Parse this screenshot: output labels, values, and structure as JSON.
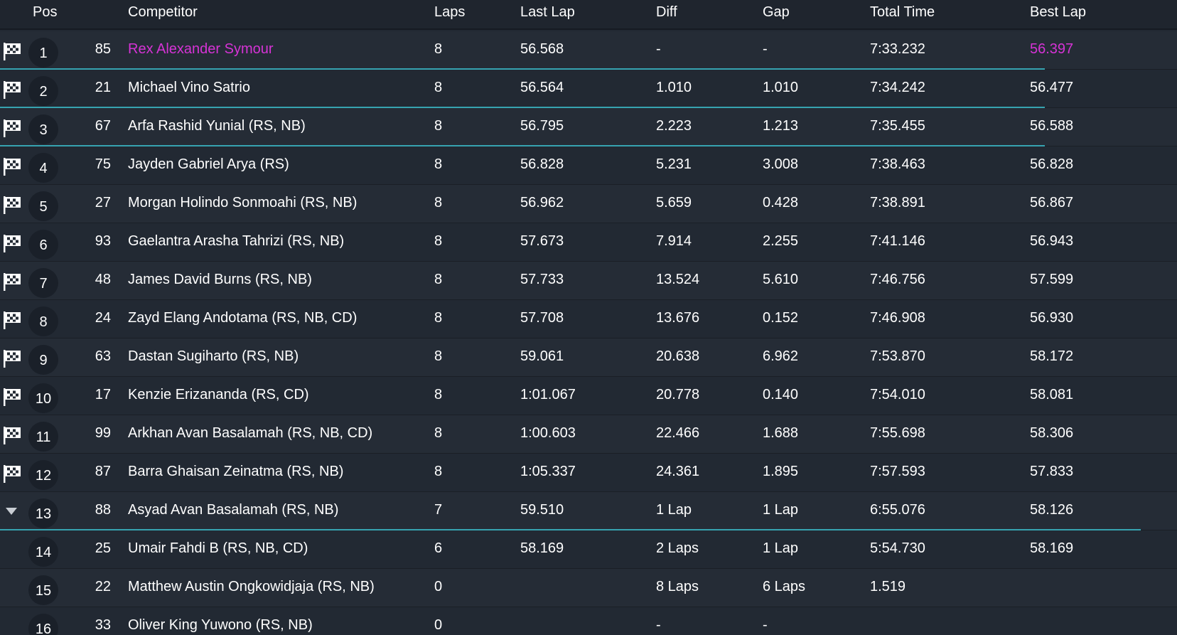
{
  "header": {
    "pos": "Pos",
    "competitor": "Competitor",
    "laps": "Laps",
    "last_lap": "Last Lap",
    "diff": "Diff",
    "gap": "Gap",
    "total_time": "Total Time",
    "best_lap": "Best Lap"
  },
  "colors": {
    "background": "#222933",
    "highlight": "#d633d6",
    "separator": "#36a3b0"
  },
  "rows": [
    {
      "status": "finished",
      "pos": "1",
      "num": "85",
      "competitor": "Rex Alexander Symour",
      "laps": "8",
      "last_lap": "56.568",
      "diff": "-",
      "gap": "-",
      "total_time": "7:33.232",
      "best_lap": "56.397",
      "highlight": true
    },
    {
      "status": "finished",
      "pos": "2",
      "num": "21",
      "competitor": "Michael Vino Satrio",
      "laps": "8",
      "last_lap": "56.564",
      "diff": "1.010",
      "gap": "1.010",
      "total_time": "7:34.242",
      "best_lap": "56.477"
    },
    {
      "status": "finished",
      "pos": "3",
      "num": "67",
      "competitor": "Arfa Rashid Yunial (RS, NB)",
      "laps": "8",
      "last_lap": "56.795",
      "diff": "2.223",
      "gap": "1.213",
      "total_time": "7:35.455",
      "best_lap": "56.588"
    },
    {
      "status": "finished",
      "pos": "4",
      "num": "75",
      "competitor": "Jayden Gabriel Arya (RS)",
      "laps": "8",
      "last_lap": "56.828",
      "diff": "5.231",
      "gap": "3.008",
      "total_time": "7:38.463",
      "best_lap": "56.828"
    },
    {
      "status": "finished",
      "pos": "5",
      "num": "27",
      "competitor": "Morgan Holindo Sonmoahi (RS, NB)",
      "laps": "8",
      "last_lap": "56.962",
      "diff": "5.659",
      "gap": "0.428",
      "total_time": "7:38.891",
      "best_lap": "56.867"
    },
    {
      "status": "finished",
      "pos": "6",
      "num": "93",
      "competitor": "Gaelantra Arasha Tahrizi (RS, NB)",
      "laps": "8",
      "last_lap": "57.673",
      "diff": "7.914",
      "gap": "2.255",
      "total_time": "7:41.146",
      "best_lap": "56.943"
    },
    {
      "status": "finished",
      "pos": "7",
      "num": "48",
      "competitor": "James David Burns (RS, NB)",
      "laps": "8",
      "last_lap": "57.733",
      "diff": "13.524",
      "gap": "5.610",
      "total_time": "7:46.756",
      "best_lap": "57.599"
    },
    {
      "status": "finished",
      "pos": "8",
      "num": "24",
      "competitor": "Zayd Elang Andotama (RS, NB, CD)",
      "laps": "8",
      "last_lap": "57.708",
      "diff": "13.676",
      "gap": "0.152",
      "total_time": "7:46.908",
      "best_lap": "56.930"
    },
    {
      "status": "finished",
      "pos": "9",
      "num": "63",
      "competitor": "Dastan Sugiharto (RS, NB)",
      "laps": "8",
      "last_lap": "59.061",
      "diff": "20.638",
      "gap": "6.962",
      "total_time": "7:53.870",
      "best_lap": "58.172"
    },
    {
      "status": "finished",
      "pos": "10",
      "num": "17",
      "competitor": "Kenzie Erizananda (RS, CD)",
      "laps": "8",
      "last_lap": "1:01.067",
      "diff": "20.778",
      "gap": "0.140",
      "total_time": "7:54.010",
      "best_lap": "58.081"
    },
    {
      "status": "finished",
      "pos": "11",
      "num": "99",
      "competitor": "Arkhan Avan Basalamah (RS, NB, CD)",
      "laps": "8",
      "last_lap": "1:00.603",
      "diff": "22.466",
      "gap": "1.688",
      "total_time": "7:55.698",
      "best_lap": "58.306"
    },
    {
      "status": "finished",
      "pos": "12",
      "num": "87",
      "competitor": "Barra Ghaisan Zeinatma (RS, NB)",
      "laps": "8",
      "last_lap": "1:05.337",
      "diff": "24.361",
      "gap": "1.895",
      "total_time": "7:57.593",
      "best_lap": "57.833"
    },
    {
      "status": "down",
      "pos": "13",
      "num": "88",
      "competitor": "Asyad Avan Basalamah (RS, NB)",
      "laps": "7",
      "last_lap": "59.510",
      "diff": "1 Lap",
      "gap": "1 Lap",
      "total_time": "6:55.076",
      "best_lap": "58.126"
    },
    {
      "status": "none",
      "pos": "14",
      "num": "25",
      "competitor": "Umair Fahdi B (RS, NB, CD)",
      "laps": "6",
      "last_lap": "58.169",
      "diff": "2 Laps",
      "gap": "1 Lap",
      "total_time": "5:54.730",
      "best_lap": "58.169"
    },
    {
      "status": "none",
      "pos": "15",
      "num": "22",
      "competitor": "Matthew Austin Ongkowidjaja (RS, NB)",
      "laps": "0",
      "last_lap": "",
      "diff": "8 Laps",
      "gap": "6 Laps",
      "total_time": "1.519",
      "best_lap": ""
    },
    {
      "status": "none",
      "pos": "16",
      "num": "33",
      "competitor": "Oliver King Yuwono (RS, NB)",
      "laps": "0",
      "last_lap": "",
      "diff": "-",
      "gap": "-",
      "total_time": "",
      "best_lap": ""
    }
  ]
}
